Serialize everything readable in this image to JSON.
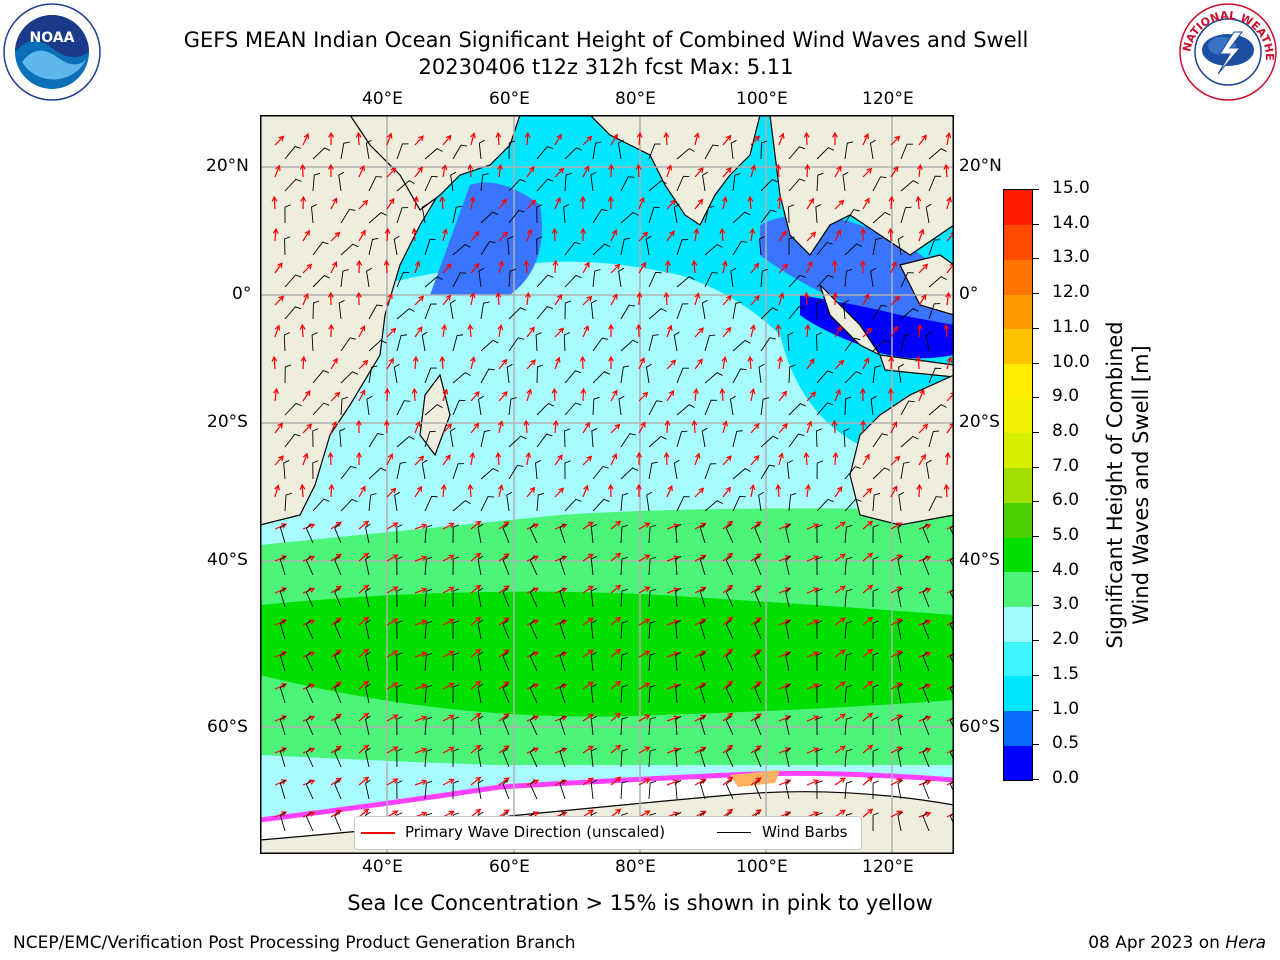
{
  "title": {
    "line1": "GEFS MEAN Indian Ocean Significant Height of Combined Wind Waves and Swell",
    "line2": "20230406 t12z 312h fcst   Max: 5.11"
  },
  "logos": {
    "left": "NOAA",
    "left_ring": "NATIONAL OCEANIC AND ATMOSPHERIC ADMINISTRATION · U.S. DEPARTMENT OF COMMERCE",
    "right_ring": "NATIONAL WEATHER SERVICE"
  },
  "axes": {
    "lon_labels": [
      "40°E",
      "60°E",
      "80°E",
      "100°E",
      "120°E"
    ],
    "lat_labels": [
      "20°N",
      "0°",
      "20°S",
      "40°S",
      "60°S"
    ]
  },
  "legend": {
    "wave": "Primary Wave Direction (unscaled)",
    "wind": "Wind Barbs"
  },
  "colorbar": {
    "label_line1": "Significant Height of Combined",
    "label_line2": "Wind Waves and Swell [m]",
    "ticks": [
      "0.0",
      "0.5",
      "1.0",
      "1.5",
      "2.0",
      "3.0",
      "4.0",
      "5.0",
      "6.0",
      "7.0",
      "8.0",
      "9.0",
      "10.0",
      "11.0",
      "12.0",
      "13.0",
      "14.0",
      "15.0"
    ],
    "colors": [
      "#0000ff",
      "#0a6cff",
      "#00e6ff",
      "#3cf5ff",
      "#a0fcff",
      "#4cf57a",
      "#00e000",
      "#4ccf00",
      "#a0e000",
      "#d8f000",
      "#f0f000",
      "#ffec00",
      "#ffc200",
      "#ff9a00",
      "#ff7400",
      "#ff4a00",
      "#ff1a00"
    ]
  },
  "note": "Sea Ice Concentration > 15% is shown in pink to yellow",
  "footer": {
    "left": "NCEP/EMC/Verification Post Processing Product Generation Branch",
    "date": "08 Apr 2023 on ",
    "machine": "Hera"
  }
}
